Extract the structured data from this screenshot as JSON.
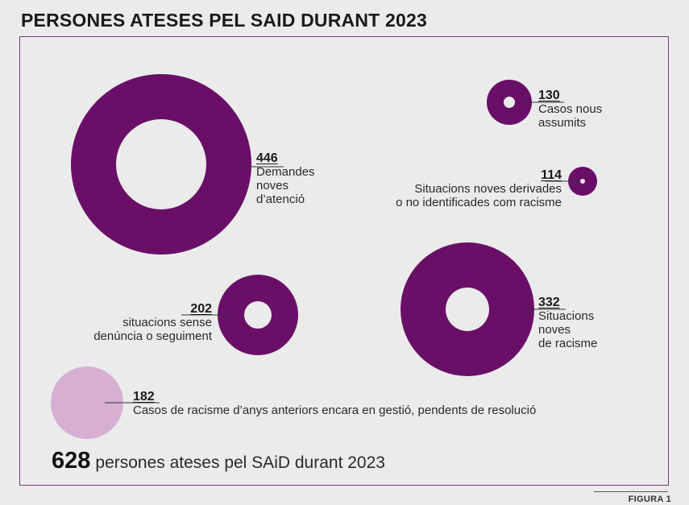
{
  "title": "PERSONES ATESES PEL SAID DURANT 2023",
  "figure_label": "FIGURA 1",
  "total": {
    "value": "628",
    "text": "persones ateses pel SAiD durant 2023"
  },
  "colors": {
    "ring": "#6a0f68",
    "legacy": "#d6afd3",
    "frame": "#7b3b7b",
    "background": "#ebebeb"
  },
  "chart_data": {
    "type": "proportional-ring",
    "title": "PERSONES ATESES PEL SAID DURANT 2023",
    "total": 628,
    "items": [
      {
        "id": "demandes",
        "value": 446,
        "label": "Demandes\nnoves\nd’atenció",
        "style": "ring"
      },
      {
        "id": "casos",
        "value": 130,
        "label": "Casos nous\nassumits",
        "style": "ring"
      },
      {
        "id": "derivades",
        "value": 114,
        "label": "Situacions noves derivades\no no identificades com racisme",
        "style": "ring"
      },
      {
        "id": "racisme",
        "value": 332,
        "label": "Situacions\nnoves\nde racisme",
        "style": "ring"
      },
      {
        "id": "sense",
        "value": 202,
        "label": "situacions sense\ndenúncia o seguiment",
        "style": "ring"
      },
      {
        "id": "anteriors",
        "value": 182,
        "label": "Casos de racisme d’anys anteriors encara en gestió, pendents de resolució",
        "style": "disc"
      }
    ]
  }
}
